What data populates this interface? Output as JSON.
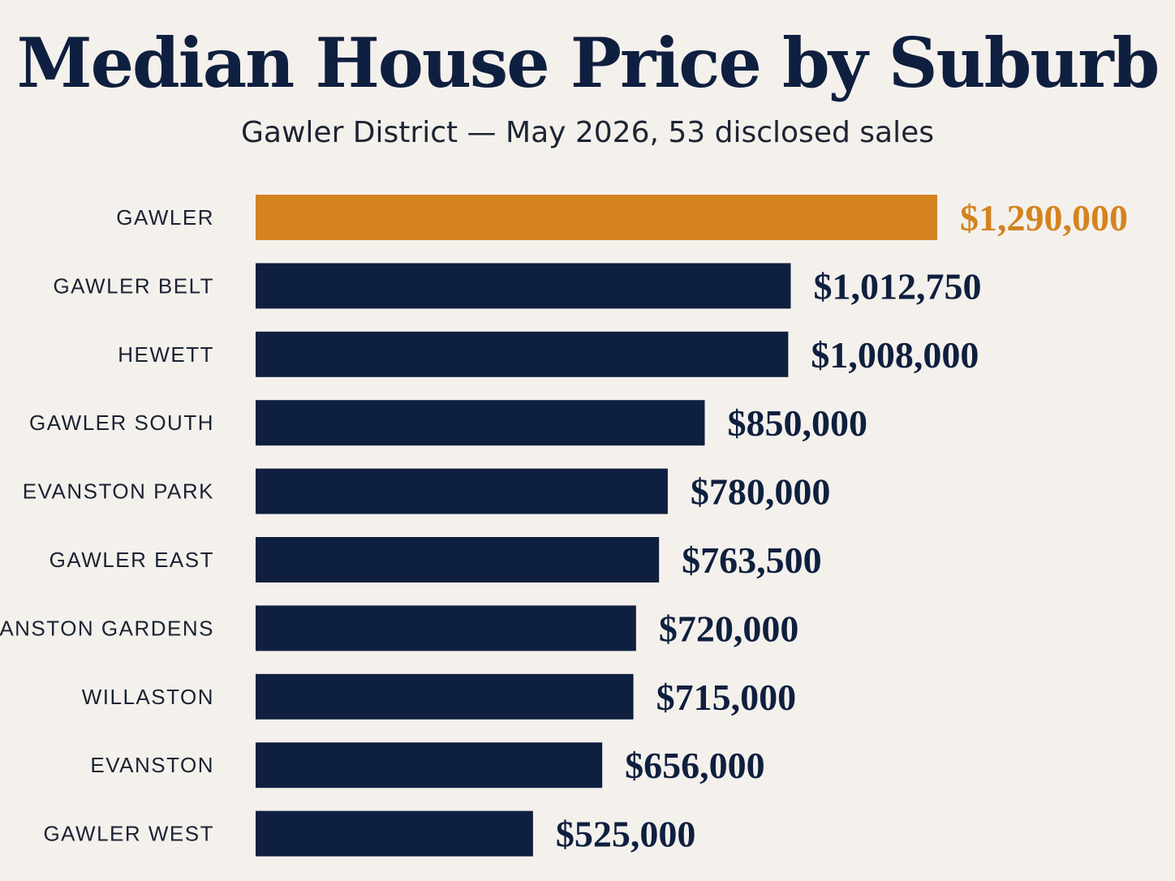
{
  "title": "Median House Price by Suburb",
  "subtitle": "Gawler District — May 2026, 53 disclosed sales",
  "colors": {
    "background": "#f4f1ec",
    "highlight": "#d4831f",
    "bar": "#0f1f3f"
  },
  "chart_data": {
    "type": "bar",
    "orientation": "horizontal",
    "title": "Median House Price by Suburb",
    "subtitle": "Gawler District — May 2026, 53 disclosed sales",
    "categories": [
      "GAWLER",
      "GAWLER BELT",
      "HEWETT",
      "GAWLER SOUTH",
      "EVANSTON PARK",
      "GAWLER EAST",
      "EVANSTON GARDENS",
      "WILLASTON",
      "EVANSTON",
      "GAWLER WEST"
    ],
    "values": [
      1290000,
      1012750,
      1008000,
      850000,
      780000,
      763500,
      720000,
      715000,
      656000,
      525000
    ],
    "value_labels": [
      "$1,290,000",
      "$1,012,750",
      "$1,008,000",
      "$850,000",
      "$780,000",
      "$763,500",
      "$720,000",
      "$715,000",
      "$656,000",
      "$525,000"
    ],
    "highlighted_category": "GAWLER",
    "grid": false,
    "legend": "none"
  }
}
